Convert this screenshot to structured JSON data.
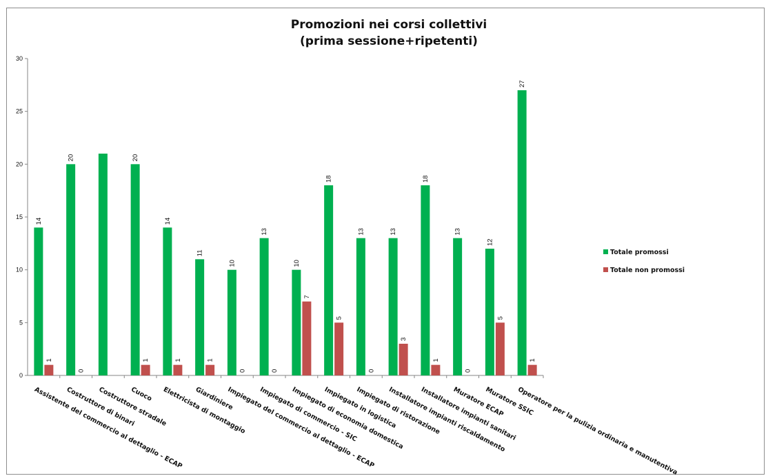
{
  "chart_data": {
    "type": "bar",
    "title": "Promozioni nei corsi collettivi",
    "subtitle": "(prima sessione+ripetenti)",
    "xlabel": "",
    "ylabel": "",
    "ylim": [
      0,
      30
    ],
    "yticks": [
      0,
      5,
      10,
      15,
      20,
      25,
      30
    ],
    "grid": false,
    "legend_position": "right",
    "categories": [
      "Assistente del commercio al dettaglio - ECAP",
      "Costruttore di binari",
      "Costruttore stradale",
      "Cuoco",
      "Elettricista di montaggio",
      "Giardiniere",
      "Impiegato del commercio al dettaglio - ECAP",
      "Impiegato di commercio - SIC",
      "Impiegato di economia domestica",
      "Impiegato in logistica",
      "Impiegato di ristorazione",
      "Installatore impianti riscaldamento",
      "Installatore impianti sanitari",
      "Muratore ECAP",
      "Muratore SSIC",
      "Operatore per la pulizia ordinaria e manutentiva"
    ],
    "series": [
      {
        "name": "Totale promossi",
        "color": "#00b050",
        "values": [
          14,
          20,
          21,
          20,
          14,
          11,
          10,
          13,
          10,
          18,
          13,
          13,
          18,
          13,
          12,
          27
        ],
        "labels": [
          "14",
          "20",
          "",
          "20",
          "14",
          "11",
          "10",
          "13",
          "10",
          "18",
          "13",
          "13",
          "18",
          "13",
          "12",
          "27"
        ]
      },
      {
        "name": "Totale non promossi",
        "color": "#c0504d",
        "values": [
          1,
          0,
          0,
          1,
          1,
          1,
          0,
          0,
          7,
          5,
          0,
          3,
          1,
          0,
          5,
          1
        ],
        "labels": [
          "1",
          "0",
          "",
          "1",
          "1",
          "1",
          "0",
          "0",
          "7",
          "5",
          "0",
          "3",
          "1",
          "0",
          "5",
          "1"
        ]
      }
    ]
  }
}
